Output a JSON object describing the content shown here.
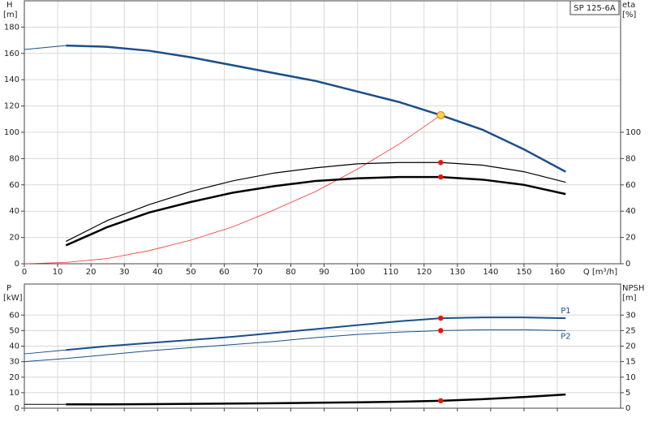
{
  "chart_data": [
    {
      "type": "line",
      "title": "SP 125-6A",
      "ylabel": "H",
      "yunit": "[m]",
      "y2label": "eta",
      "y2unit": "[%]",
      "xlabel": "Q [m³/h]",
      "x": [
        0,
        12.5,
        25,
        37.5,
        50,
        62.5,
        75,
        87.5,
        100,
        112.5,
        125,
        137.5,
        150,
        162.5
      ],
      "xlim": [
        0,
        179
      ],
      "xticks": [
        0,
        10,
        20,
        30,
        40,
        50,
        60,
        70,
        80,
        90,
        100,
        110,
        120,
        130,
        140,
        150,
        160
      ],
      "xtick_labels": true,
      "ylim": [
        0,
        200
      ],
      "yticks": [
        0,
        20,
        40,
        60,
        80,
        100,
        120,
        140,
        160,
        180
      ],
      "y2lim": [
        0,
        200
      ],
      "y2ticks": [
        0,
        20,
        40,
        60,
        80,
        100
      ],
      "grid": true,
      "series": [
        {
          "color": "#1a4f8a",
          "width": 1,
          "values": [
            163,
            166,
            null,
            null,
            null,
            null,
            null,
            null,
            null,
            null,
            null,
            null,
            null,
            null
          ]
        },
        {
          "color": "#1a4f8a",
          "width": 2.5,
          "values": [
            null,
            166,
            165,
            162,
            157,
            151,
            145,
            139,
            131,
            123,
            113,
            102,
            87,
            70
          ]
        },
        {
          "color": "#ff3030",
          "width": 0.8,
          "values": [
            0,
            1,
            4,
            10,
            18,
            28,
            41,
            55,
            72,
            91,
            113,
            null,
            null,
            null
          ]
        },
        {
          "color": "#000000",
          "width": 1.2,
          "axis": "y2",
          "values": [
            null,
            17,
            33,
            45,
            55,
            63,
            69,
            73,
            76,
            77,
            77,
            75,
            70,
            62
          ]
        },
        {
          "color": "#000000",
          "width": 2.5,
          "axis": "y2",
          "values": [
            null,
            14,
            28,
            39,
            47,
            54,
            59,
            63,
            65,
            66,
            66,
            64,
            60,
            53
          ]
        }
      ],
      "markers": [
        {
          "x": 125,
          "y": 113,
          "color": "#ffd24a"
        },
        {
          "x": 125,
          "y": 77,
          "color": "#ee1111",
          "axis": "y2"
        },
        {
          "x": 125,
          "y": 66,
          "color": "#ee1111",
          "axis": "y2"
        }
      ]
    },
    {
      "type": "line",
      "ylabel": "P",
      "yunit": "[kW]",
      "y2label": "NPSH",
      "y2unit": "[m]",
      "x": [
        0,
        12.5,
        25,
        37.5,
        50,
        62.5,
        75,
        87.5,
        100,
        112.5,
        125,
        137.5,
        150,
        162.5
      ],
      "xlim": [
        0,
        179
      ],
      "xticks": [
        0,
        10,
        20,
        30,
        40,
        50,
        60,
        70,
        80,
        90,
        100,
        110,
        120,
        130,
        140,
        150,
        160
      ],
      "xtick_labels": false,
      "ylim": [
        0,
        80
      ],
      "yticks": [
        0,
        10,
        20,
        30,
        40,
        50,
        60
      ],
      "y2lim": [
        0,
        40
      ],
      "y2ticks": [
        0,
        5,
        10,
        15,
        20,
        25,
        30
      ],
      "grid": true,
      "series": [
        {
          "color": "#1a4f8a",
          "width": 1,
          "values": [
            35,
            37.5,
            null,
            null,
            null,
            null,
            null,
            null,
            null,
            null,
            null,
            null,
            null,
            null
          ]
        },
        {
          "name": "P1",
          "color": "#1a4f8a",
          "width": 2,
          "values": [
            null,
            37.5,
            40,
            42,
            44,
            46,
            48.5,
            51,
            53.5,
            56,
            58,
            58.5,
            58.5,
            58
          ]
        },
        {
          "name": "P2",
          "color": "#1a4f8a",
          "width": 1,
          "values": [
            30,
            32,
            34.5,
            37,
            39,
            41,
            43,
            45.5,
            47.5,
            49,
            50,
            50.5,
            50.5,
            50
          ]
        },
        {
          "color": "#000000",
          "width": 1,
          "axis": "y2",
          "values": [
            1.25,
            1.25,
            null,
            null,
            null,
            null,
            null,
            null,
            null,
            null,
            null,
            null,
            null,
            null
          ]
        },
        {
          "color": "#000000",
          "width": 2.5,
          "axis": "y2",
          "values": [
            null,
            1.25,
            1.25,
            1.3,
            1.4,
            1.5,
            1.6,
            1.75,
            1.9,
            2.1,
            2.4,
            2.9,
            3.6,
            4.4
          ]
        }
      ],
      "markers": [
        {
          "x": 125,
          "y": 58,
          "color": "#ee1111"
        },
        {
          "x": 125,
          "y": 50,
          "color": "#ee1111"
        },
        {
          "x": 125,
          "y": 2.4,
          "color": "#ee1111",
          "axis": "y2"
        }
      ]
    }
  ]
}
